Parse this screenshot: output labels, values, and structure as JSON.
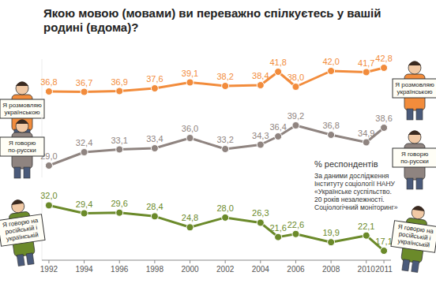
{
  "chart_data": [
    {
      "type": "line",
      "title": "Якою мовою (мовами) ви переважно спілкуєтесь у вашій родині (вдома)?",
      "subtitle": "% респондентів",
      "annotations": [
        "За даними дослідження",
        "Інституту соціології НАНУ",
        "«Українське суспільство.",
        "20 років незалежності.",
        "Соціологічний моніторинг»"
      ],
      "x": [
        1992,
        1994,
        1996,
        1998,
        2000,
        2002,
        2004,
        2005,
        2006,
        2008,
        2010,
        2011
      ],
      "xlim": [
        1991.6,
        2011.4
      ],
      "ylim": [
        33,
        45
      ],
      "tick_labels": false,
      "data_labels": true,
      "series": [
        {
          "name": "Я розмовляю українською",
          "color": "#f28c3c",
          "marker": "circle",
          "line_style": "solid",
          "values": [
            36.8,
            36.7,
            36.9,
            37.6,
            39.1,
            38.2,
            38.4,
            41.8,
            38.0,
            42.0,
            41.7,
            42.8
          ],
          "value_labels": [
            "36,8",
            "36,7",
            "36,9",
            "37,6",
            "39,1",
            "38,2",
            "38,4",
            "41,8",
            "38,0",
            "42,0",
            "41,7",
            "42,8"
          ]
        }
      ]
    },
    {
      "type": "line",
      "x": [
        1992,
        1994,
        1996,
        1998,
        2000,
        2002,
        2004,
        2005,
        2006,
        2008,
        2010,
        2011
      ],
      "xlim": [
        1991.6,
        2011.4
      ],
      "ylim": [
        26,
        42
      ],
      "tick_labels": false,
      "data_labels": true,
      "series": [
        {
          "name": "Я говорю по-русски",
          "color": "#8f8480",
          "marker": "circle",
          "line_style": "solid",
          "values": [
            29.0,
            32.4,
            33.1,
            33.4,
            36.0,
            33.2,
            34.3,
            36.4,
            39.2,
            36.8,
            34.9,
            38.6
          ],
          "value_labels": [
            "29,0",
            "32,4",
            "33,1",
            "33,4",
            "36,0",
            "33,2",
            "34,3",
            "36,4",
            "39,2",
            "36,8",
            "34,9",
            "38,6"
          ]
        }
      ]
    },
    {
      "type": "line",
      "x": [
        1992,
        1994,
        1996,
        1998,
        2000,
        2002,
        2004,
        2005,
        2006,
        2008,
        2010,
        2011
      ],
      "xlim": [
        1991.6,
        2011.4
      ],
      "xticks": [
        1992,
        1994,
        1996,
        1998,
        2000,
        2002,
        2004,
        2006,
        2008,
        2010,
        2011
      ],
      "ylim": [
        14,
        36
      ],
      "tick_labels": "x",
      "data_labels": true,
      "series": [
        {
          "name": "Я говорю на російській і українській",
          "color": "#6b8a2a",
          "marker": "circle",
          "line_style": "solid",
          "values": [
            32.0,
            29.4,
            29.6,
            28.4,
            24.8,
            28.0,
            26.3,
            21.6,
            22.6,
            19.9,
            22.1,
            17.1
          ],
          "value_labels": [
            "32,0",
            "29,4",
            "29,6",
            "28,4",
            "24,8",
            "28,0",
            "26,3",
            "21,6",
            "22,6",
            "19,9",
            "22,1",
            "17,1"
          ]
        }
      ]
    }
  ]
}
